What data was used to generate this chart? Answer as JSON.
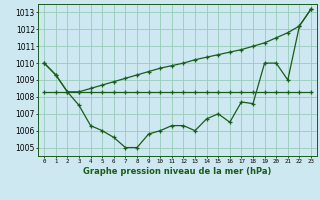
{
  "title": "Graphe pression niveau de la mer (hPa)",
  "bg_color": "#cde8f0",
  "grid_color": "#99ccbb",
  "line_color": "#1a5c1a",
  "x_labels": [
    "0",
    "1",
    "2",
    "3",
    "4",
    "5",
    "6",
    "7",
    "8",
    "9",
    "10",
    "11",
    "12",
    "13",
    "14",
    "15",
    "16",
    "17",
    "18",
    "19",
    "20",
    "21",
    "22",
    "23"
  ],
  "ylim": [
    1004.5,
    1013.5
  ],
  "yticks": [
    1005,
    1006,
    1007,
    1008,
    1009,
    1010,
    1011,
    1012,
    1013
  ],
  "series1": [
    1010.0,
    1009.3,
    1008.3,
    1007.5,
    1006.3,
    1006.0,
    1005.6,
    1005.0,
    1005.0,
    1005.8,
    1006.0,
    1006.3,
    1006.3,
    1006.0,
    1006.7,
    1007.0,
    1006.5,
    1007.7,
    1007.6,
    1010.0,
    1010.0,
    1009.0,
    1012.2,
    1013.2
  ],
  "series2": [
    1008.3,
    1008.3,
    1008.3,
    1008.3,
    1008.3,
    1008.3,
    1008.3,
    1008.3,
    1008.3,
    1008.3,
    1008.3,
    1008.3,
    1008.3,
    1008.3,
    1008.3,
    1008.3,
    1008.3,
    1008.3,
    1008.3,
    1008.3,
    1008.3,
    1008.3,
    1008.3,
    1008.3
  ],
  "series3": [
    1010.0,
    1009.3,
    1008.3,
    1008.3,
    1008.5,
    1008.7,
    1008.9,
    1009.1,
    1009.3,
    1009.5,
    1009.7,
    1009.85,
    1010.0,
    1010.2,
    1010.35,
    1010.5,
    1010.65,
    1010.8,
    1011.0,
    1011.2,
    1011.5,
    1011.8,
    1012.2,
    1013.2
  ]
}
